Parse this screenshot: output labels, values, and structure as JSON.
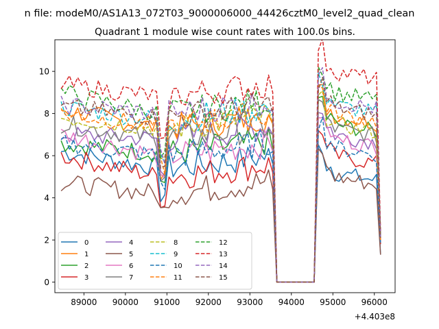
{
  "figure": {
    "suptitle": "n file: modeM0/AS1A13_072T03_9000006000_44426cztM0_level2_quad_clean",
    "offset_label": "+4.403e8"
  },
  "chart_data": {
    "type": "line",
    "title": "Quadrant 1 module wise count rates with 100.0s bins.",
    "xlabel": "",
    "ylabel": "",
    "x_offset": 440300000,
    "xlim": [
      88300,
      96500
    ],
    "ylim": [
      -0.5,
      11.5
    ],
    "xticks": [
      89000,
      90000,
      91000,
      92000,
      93000,
      94000,
      95000,
      96000
    ],
    "yticks": [
      0,
      2,
      4,
      6,
      8,
      10
    ],
    "grid": false,
    "legend": {
      "placement": "lower-left",
      "ncol": 4
    },
    "x_segments": [
      {
        "start": 88450,
        "step": 100,
        "count": 52
      },
      {
        "start": 93650,
        "step": 100,
        "count": 9
      },
      {
        "start": 94550,
        "step": 100,
        "count": 17
      }
    ],
    "series": [
      {
        "name": "0",
        "color": "#1f77b4",
        "dash": "solid",
        "levels": [
          6.2,
          5.4,
          3.0,
          5.2,
          1.3
        ]
      },
      {
        "name": "1",
        "color": "#ff7f0e",
        "dash": "solid",
        "levels": [
          8.2,
          7.3,
          3.4,
          7.9,
          2.1
        ]
      },
      {
        "name": "2",
        "color": "#2ca02c",
        "dash": "solid",
        "levels": [
          6.6,
          6.1,
          3.6,
          7.5,
          1.9
        ]
      },
      {
        "name": "3",
        "color": "#d62728",
        "dash": "solid",
        "levels": [
          6.0,
          5.0,
          2.9,
          6.0,
          1.8
        ]
      },
      {
        "name": "4",
        "color": "#9467bd",
        "dash": "solid",
        "levels": [
          7.0,
          6.8,
          3.5,
          7.0,
          2.0
        ]
      },
      {
        "name": "5",
        "color": "#8c564b",
        "dash": "solid",
        "levels": [
          4.7,
          4.2,
          2.5,
          5.0,
          1.3
        ]
      },
      {
        "name": "6",
        "color": "#e377c2",
        "dash": "solid",
        "levels": [
          7.0,
          6.0,
          3.3,
          6.8,
          1.9
        ]
      },
      {
        "name": "7",
        "color": "#7f7f7f",
        "dash": "solid",
        "levels": [
          7.5,
          6.8,
          3.5,
          7.3,
          2.0
        ]
      },
      {
        "name": "8",
        "color": "#bcbd22",
        "dash": "dashed",
        "levels": [
          7.8,
          7.3,
          3.7,
          7.5,
          2.0
        ]
      },
      {
        "name": "9",
        "color": "#17becf",
        "dash": "dashed",
        "levels": [
          8.3,
          7.7,
          3.9,
          8.4,
          2.1
        ]
      },
      {
        "name": "10",
        "color": "#1f77b4",
        "dash": "dashed",
        "levels": [
          6.6,
          6.0,
          3.4,
          6.4,
          1.8
        ]
      },
      {
        "name": "11",
        "color": "#ff7f0e",
        "dash": "dashed",
        "levels": [
          8.0,
          7.4,
          3.6,
          8.0,
          2.0
        ]
      },
      {
        "name": "12",
        "color": "#2ca02c",
        "dash": "dashed",
        "levels": [
          9.0,
          8.0,
          3.8,
          9.0,
          2.2
        ]
      },
      {
        "name": "13",
        "color": "#d62728",
        "dash": "dashed",
        "levels": [
          9.4,
          8.8,
          4.0,
          10.0,
          2.4
        ]
      },
      {
        "name": "14",
        "color": "#9467bd",
        "dash": "dashed",
        "levels": [
          8.4,
          8.0,
          3.8,
          8.6,
          2.1
        ]
      },
      {
        "name": "15",
        "color": "#8c564b",
        "dash": "dashed",
        "levels": [
          8.3,
          7.8,
          3.8,
          8.3,
          2.1
        ]
      }
    ]
  }
}
